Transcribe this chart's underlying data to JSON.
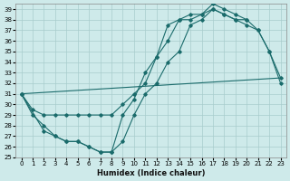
{
  "xlabel": "Humidex (Indice chaleur)",
  "bg_color": "#ceeaea",
  "grid_color": "#a8cccc",
  "line_color": "#1a6b6b",
  "xlim": [
    -0.5,
    23.5
  ],
  "ylim": [
    25,
    39.5
  ],
  "yticks": [
    25,
    26,
    27,
    28,
    29,
    30,
    31,
    32,
    33,
    34,
    35,
    36,
    37,
    38,
    39
  ],
  "xticks": [
    0,
    1,
    2,
    3,
    4,
    5,
    6,
    7,
    8,
    9,
    10,
    11,
    12,
    13,
    14,
    15,
    16,
    17,
    18,
    19,
    20,
    21,
    22,
    23
  ],
  "series": [
    {
      "x": [
        0,
        1,
        2,
        3,
        4,
        5,
        6,
        7,
        8,
        9,
        10,
        11,
        12,
        13,
        14,
        15,
        16,
        17,
        18,
        19,
        20
      ],
      "y": [
        31.0,
        29.5,
        29.0,
        29.0,
        29.0,
        29.0,
        29.0,
        29.0,
        29.0,
        30.0,
        31.0,
        32.0,
        34.5,
        36.0,
        38.0,
        38.0,
        38.5,
        39.5,
        39.0,
        38.5,
        38.0
      ],
      "marker": true
    },
    {
      "x": [
        0,
        1,
        2,
        3,
        4,
        5,
        6,
        7,
        8,
        9,
        10,
        11,
        12,
        13,
        14,
        15,
        16,
        17,
        18,
        19,
        20,
        21,
        22,
        23
      ],
      "y": [
        31.0,
        29.0,
        28.0,
        27.0,
        26.5,
        26.5,
        26.0,
        25.5,
        25.5,
        29.0,
        30.5,
        33.0,
        34.5,
        37.5,
        38.0,
        38.5,
        38.5,
        39.0,
        38.5,
        38.0,
        37.5,
        37.0,
        35.0,
        32.5
      ],
      "marker": true
    },
    {
      "x": [
        0,
        2,
        3,
        4,
        5,
        6,
        7,
        8,
        9,
        10,
        11,
        12,
        13,
        14,
        15,
        16,
        17,
        18,
        19,
        20,
        21,
        22,
        23
      ],
      "y": [
        31.0,
        27.5,
        27.0,
        26.5,
        26.5,
        26.0,
        25.5,
        25.5,
        26.5,
        29.0,
        31.0,
        32.0,
        34.0,
        35.0,
        37.5,
        38.0,
        39.0,
        38.5,
        38.0,
        38.0,
        37.0,
        35.0,
        32.0
      ],
      "marker": true
    },
    {
      "x": [
        0,
        23
      ],
      "y": [
        31.0,
        32.5
      ],
      "marker": false
    }
  ]
}
